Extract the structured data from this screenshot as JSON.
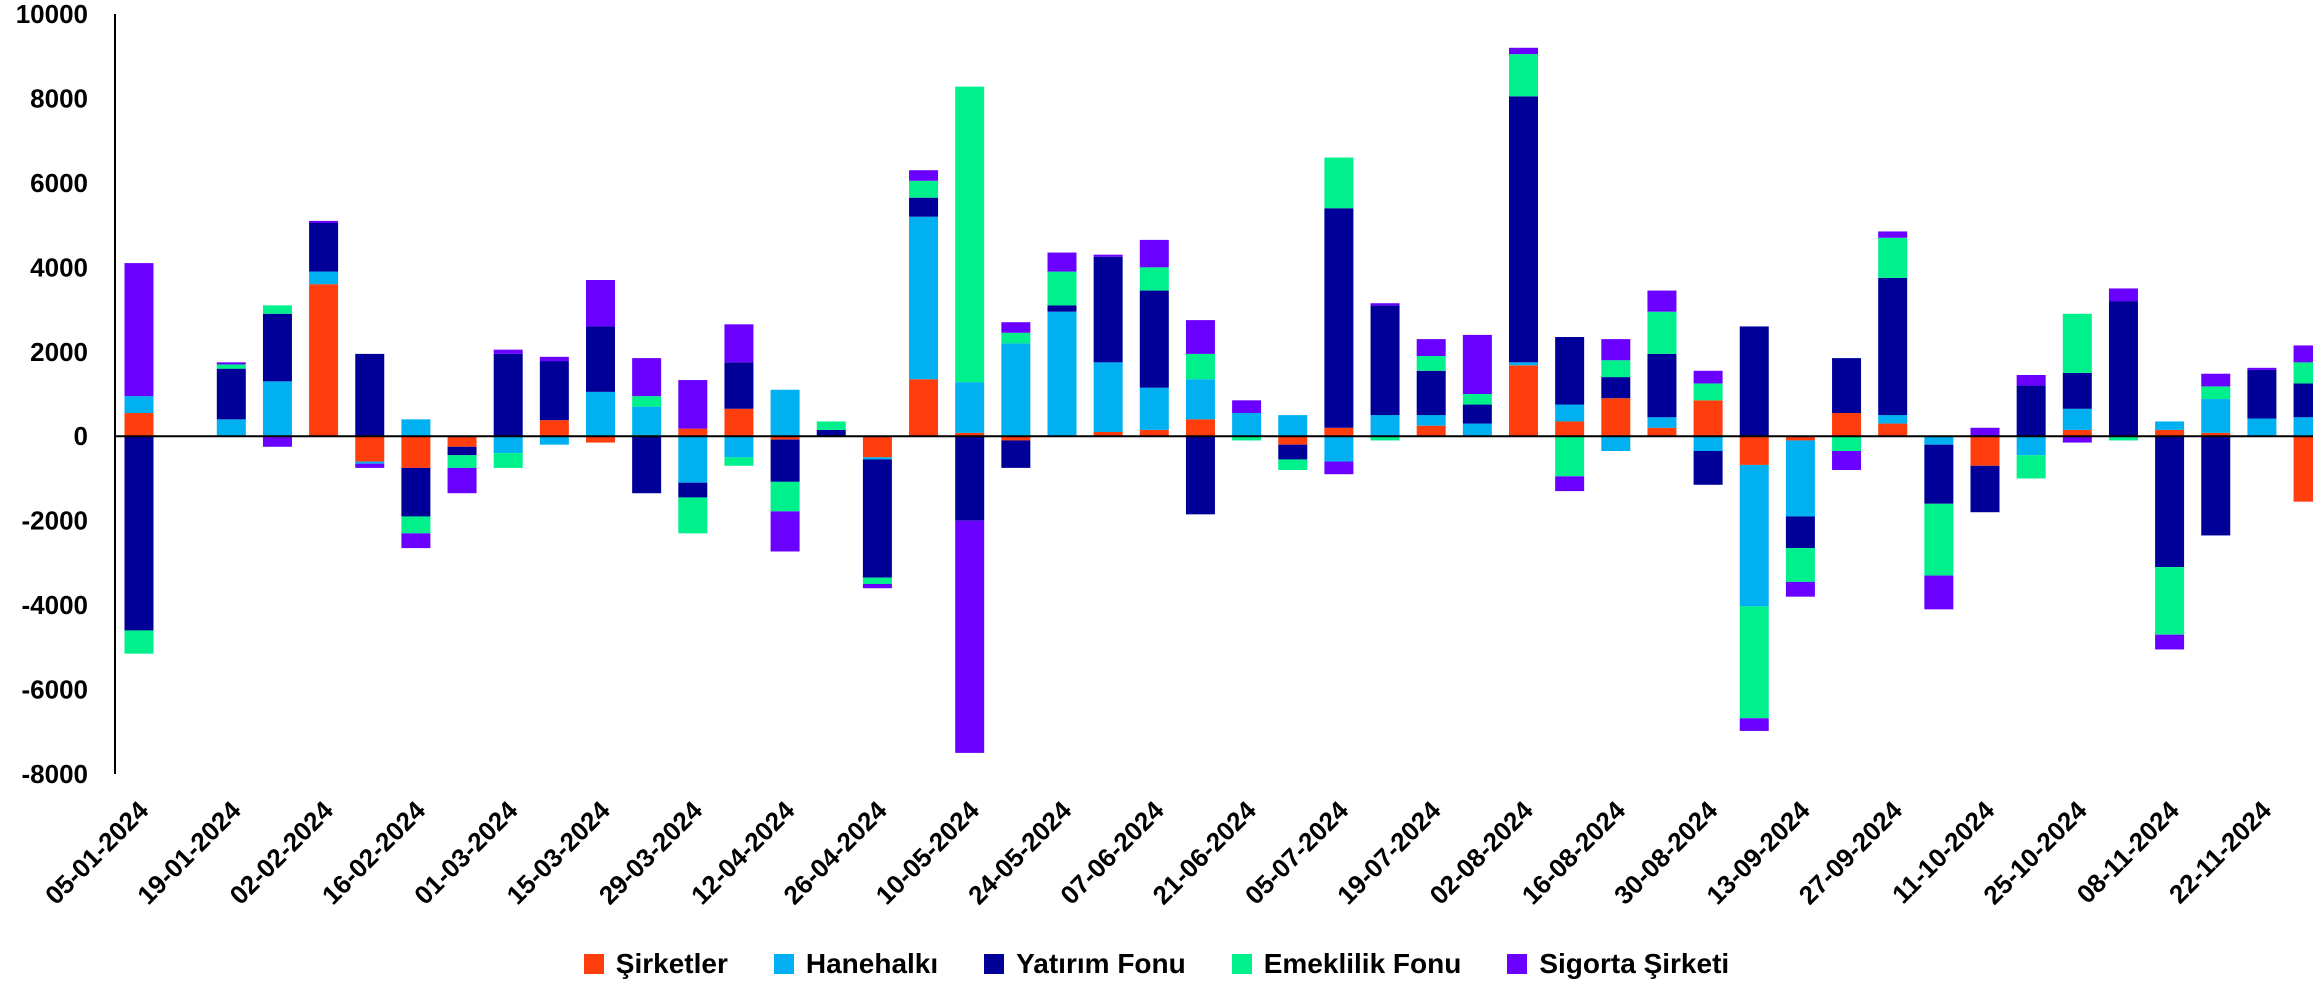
{
  "chart_data": {
    "type": "bar",
    "stacked": true,
    "title": "",
    "xlabel": "",
    "ylabel": "",
    "ylim": [
      -8000,
      10000
    ],
    "yticks": [
      10000,
      8000,
      6000,
      4000,
      2000,
      0,
      -2000,
      -4000,
      -6000,
      -8000
    ],
    "grid": false,
    "legend_position": "bottom",
    "x_tick_labels": [
      "05-01-2024",
      "19-01-2024",
      "02-02-2024",
      "16-02-2024",
      "01-03-2024",
      "15-03-2024",
      "29-03-2024",
      "12-04-2024",
      "26-04-2024",
      "10-05-2024",
      "24-05-2024",
      "07-06-2024",
      "21-06-2024",
      "05-07-2024",
      "19-07-2024",
      "02-08-2024",
      "16-08-2024",
      "30-08-2024",
      "13-09-2024",
      "27-09-2024",
      "11-10-2024",
      "25-10-2024",
      "08-11-2024",
      "22-11-2024"
    ],
    "categories": [
      "05-01-2024",
      "12-01-2024",
      "19-01-2024",
      "26-01-2024",
      "02-02-2024",
      "09-02-2024",
      "16-02-2024",
      "23-02-2024",
      "01-03-2024",
      "08-03-2024",
      "15-03-2024",
      "22-03-2024",
      "29-03-2024",
      "05-04-2024",
      "12-04-2024",
      "19-04-2024",
      "26-04-2024",
      "03-05-2024",
      "10-05-2024",
      "17-05-2024",
      "24-05-2024",
      "31-05-2024",
      "07-06-2024",
      "14-06-2024",
      "21-06-2024",
      "28-06-2024",
      "05-07-2024",
      "12-07-2024",
      "19-07-2024",
      "26-07-2024",
      "02-08-2024",
      "09-08-2024",
      "16-08-2024",
      "23-08-2024",
      "30-08-2024",
      "06-09-2024",
      "13-09-2024",
      "20-09-2024",
      "27-09-2024",
      "04-10-2024",
      "11-10-2024",
      "18-10-2024",
      "25-10-2024",
      "01-11-2024",
      "08-11-2024",
      "15-11-2024",
      "22-11-2024",
      "29-11-2024"
    ],
    "series": [
      {
        "name": "Şirketler",
        "color": "#FF3D0D",
        "values": [
          550,
          0,
          0,
          0,
          3600,
          -600,
          -750,
          -250,
          0,
          380,
          -150,
          0,
          180,
          650,
          -80,
          0,
          -500,
          1350,
          80,
          -100,
          0,
          100,
          150,
          400,
          0,
          -200,
          200,
          0,
          250,
          0,
          1680,
          350,
          900,
          200,
          850,
          -680,
          -100,
          550,
          300,
          0,
          -700,
          0,
          150,
          0,
          150,
          80,
          0,
          -1550
        ]
      },
      {
        "name": "Hanehalkı",
        "color": "#00B0F0",
        "values": [
          400,
          0,
          400,
          1300,
          300,
          -50,
          400,
          0,
          -400,
          -200,
          1050,
          700,
          -1100,
          -500,
          1100,
          0,
          -50,
          3850,
          1200,
          2200,
          2950,
          1650,
          1000,
          950,
          550,
          500,
          -600,
          500,
          250,
          300,
          70,
          400,
          -350,
          250,
          -350,
          -3350,
          -1800,
          0,
          200,
          -200,
          0,
          -450,
          500,
          0,
          200,
          800,
          420,
          450
        ]
      },
      {
        "name": "Yatırım Fonu",
        "color": "#000099",
        "values": [
          -4600,
          0,
          1200,
          1600,
          1150,
          1950,
          -1150,
          -200,
          1950,
          1400,
          1550,
          -1350,
          -350,
          1100,
          -1000,
          150,
          -2800,
          450,
          -2000,
          -650,
          150,
          2500,
          2300,
          -1850,
          0,
          -350,
          5200,
          2600,
          1050,
          450,
          6300,
          1600,
          500,
          1500,
          -800,
          2600,
          -750,
          1300,
          3250,
          -1400,
          -1100,
          1200,
          850,
          3200,
          -3100,
          -2350,
          1150,
          800
        ]
      },
      {
        "name": "Emeklilik Fonu",
        "color": "#00F08C",
        "values": [
          -550,
          0,
          100,
          200,
          0,
          0,
          -400,
          -300,
          -350,
          0,
          0,
          250,
          -850,
          -200,
          -700,
          200,
          -150,
          400,
          7000,
          250,
          800,
          0,
          550,
          600,
          -100,
          -250,
          1200,
          -100,
          350,
          250,
          1000,
          -950,
          400,
          1000,
          400,
          -2650,
          -800,
          -350,
          950,
          -1700,
          0,
          -550,
          1400,
          -100,
          -1600,
          300,
          0,
          500
        ]
      },
      {
        "name": "Sigorta Şirketi",
        "color": "#6A00FF",
        "values": [
          3150,
          0,
          50,
          -250,
          50,
          -100,
          -350,
          -600,
          100,
          100,
          1100,
          900,
          1150,
          900,
          -950,
          0,
          -100,
          250,
          -5500,
          250,
          450,
          50,
          650,
          800,
          300,
          0,
          -300,
          50,
          400,
          1400,
          150,
          -350,
          500,
          500,
          300,
          -300,
          -350,
          -450,
          150,
          -800,
          200,
          250,
          -150,
          300,
          -350,
          300,
          50,
          400
        ]
      }
    ]
  }
}
